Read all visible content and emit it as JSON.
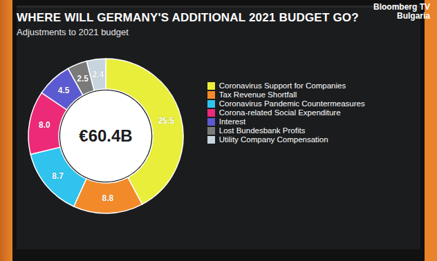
{
  "chart_data": {
    "type": "pie",
    "title": "WHERE WILL GERMANY'S ADDITIONAL 2021 BUDGET GO?",
    "subtitle": "Adjustments to 2021 budget",
    "annotations": [
      "€60.4B"
    ],
    "watermark": "Bloomberg TV Bulgaria",
    "categories": [
      "Coronavirus Support for Companies",
      "Tax Revenue Shortfall",
      "Coronavirus Pandemic Countermeasures",
      "Corona-related Social Expenditure",
      "Interest",
      "Lost Bundesbank Profits",
      "Utility Company Compensation"
    ],
    "values": [
      25.5,
      8.8,
      8.7,
      8.0,
      4.5,
      2.5,
      2.4
    ],
    "value_labels": [
      "25.5",
      "8.8",
      "8.7",
      "8.0",
      "4.5",
      "2.5",
      "2.4"
    ],
    "colors": [
      "#e9ee3a",
      "#f28a2a",
      "#2fc3ee",
      "#ec2a78",
      "#5c5ad0",
      "#7a7a7a",
      "#c7d6de"
    ],
    "data_labels": true,
    "legend": "right"
  }
}
